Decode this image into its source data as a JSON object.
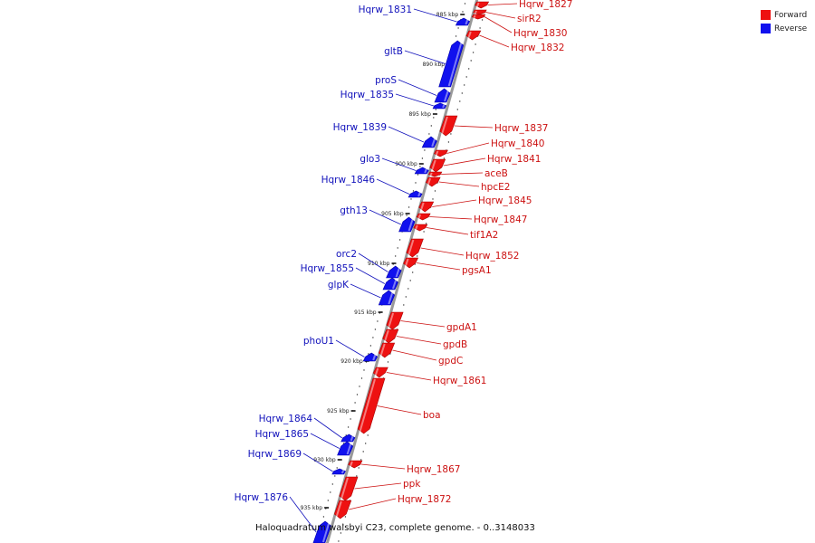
{
  "legend": [
    {
      "label": "Forward",
      "color": "#ee1111"
    },
    {
      "label": "Reverse",
      "color": "#1111ee"
    }
  ],
  "caption": "Haloquadratum walsbyi C23, complete genome. - 0..3148033",
  "colors": {
    "forward": "#ee1111",
    "reverse": "#1111ee",
    "backbone": "#999999",
    "label_forward": "#cc1111",
    "label_reverse": "#1111bb"
  },
  "ticks": [
    "885 kbp",
    "890 kbp",
    "895 kbp",
    "900 kbp",
    "905 kbp",
    "910 kbp",
    "915 kbp",
    "920 kbp",
    "925 kbp",
    "930 kbp",
    "935 kbp"
  ],
  "genes": [
    {
      "name": "Hqrw_1827",
      "strand": "forward"
    },
    {
      "name": "sirR2",
      "strand": "forward"
    },
    {
      "name": "Hqrw_1830",
      "strand": "forward"
    },
    {
      "name": "Hqrw_1832",
      "strand": "forward"
    },
    {
      "name": "Hqrw_1831",
      "strand": "reverse"
    },
    {
      "name": "gltB",
      "strand": "reverse"
    },
    {
      "name": "proS",
      "strand": "reverse"
    },
    {
      "name": "Hqrw_1835",
      "strand": "reverse"
    },
    {
      "name": "Hqrw_1837",
      "strand": "forward"
    },
    {
      "name": "Hqrw_1839",
      "strand": "reverse"
    },
    {
      "name": "Hqrw_1840",
      "strand": "forward"
    },
    {
      "name": "Hqrw_1841",
      "strand": "forward"
    },
    {
      "name": "aceB",
      "strand": "forward"
    },
    {
      "name": "glo3",
      "strand": "reverse"
    },
    {
      "name": "hpcE2",
      "strand": "forward"
    },
    {
      "name": "Hqrw_1846",
      "strand": "reverse"
    },
    {
      "name": "Hqrw_1845",
      "strand": "forward"
    },
    {
      "name": "gth13",
      "strand": "reverse"
    },
    {
      "name": "Hqrw_1847",
      "strand": "forward"
    },
    {
      "name": "tif1A2",
      "strand": "forward"
    },
    {
      "name": "Hqrw_1852",
      "strand": "forward"
    },
    {
      "name": "orc2",
      "strand": "reverse"
    },
    {
      "name": "pgsA1",
      "strand": "forward"
    },
    {
      "name": "Hqrw_1855",
      "strand": "reverse"
    },
    {
      "name": "glpK",
      "strand": "reverse"
    },
    {
      "name": "gpdA1",
      "strand": "forward"
    },
    {
      "name": "gpdB",
      "strand": "forward"
    },
    {
      "name": "phoU1",
      "strand": "reverse"
    },
    {
      "name": "gpdC",
      "strand": "forward"
    },
    {
      "name": "Hqrw_1861",
      "strand": "forward"
    },
    {
      "name": "boa",
      "strand": "forward"
    },
    {
      "name": "Hqrw_1864",
      "strand": "reverse"
    },
    {
      "name": "Hqrw_1865",
      "strand": "reverse"
    },
    {
      "name": "Hqrw_1869",
      "strand": "reverse"
    },
    {
      "name": "Hqrw_1867",
      "strand": "forward"
    },
    {
      "name": "ppk",
      "strand": "forward"
    },
    {
      "name": "Hqrw_1872",
      "strand": "forward"
    },
    {
      "name": "Hqrw_1876",
      "strand": "reverse"
    }
  ]
}
